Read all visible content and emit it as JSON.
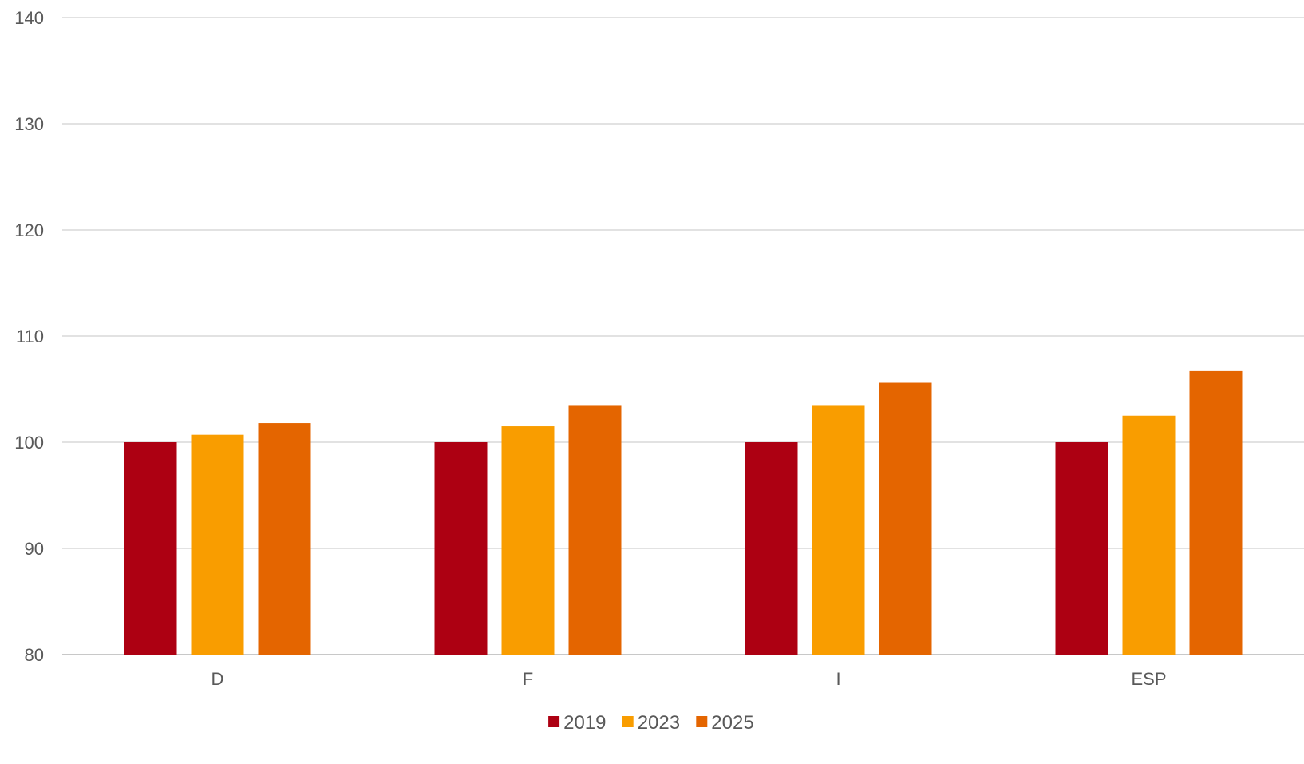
{
  "chart_data": {
    "type": "bar",
    "title": "",
    "xlabel": "",
    "ylabel": "",
    "ylim": [
      80,
      140
    ],
    "yticks": [
      80,
      90,
      100,
      110,
      120,
      130,
      140
    ],
    "grid": true,
    "legend": "bottom-center",
    "categories": [
      "D",
      "F",
      "I",
      "ESP"
    ],
    "series": [
      {
        "name": "2019",
        "color": "#ad0012",
        "values": [
          100,
          100,
          100,
          100
        ]
      },
      {
        "name": "2023",
        "color": "#f99d00",
        "values": [
          100.7,
          101.5,
          103.5,
          102.5
        ]
      },
      {
        "name": "2025",
        "color": "#e46500",
        "values": [
          101.8,
          103.5,
          105.6,
          106.7
        ]
      }
    ]
  }
}
